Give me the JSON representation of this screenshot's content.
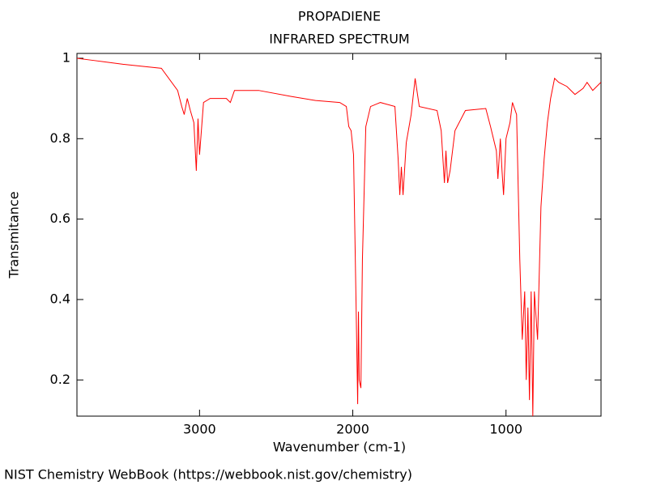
{
  "chart_data": {
    "type": "line",
    "title": "PROPADIENE",
    "subtitle": "INFRARED SPECTRUM",
    "x_label": "Wavenumber (cm-1)",
    "y_label": "Transmitance",
    "source": "NIST Chemistry WebBook (https://webbook.nist.gov/chemistry)",
    "color": "#ff0000",
    "xlim": [
      3800,
      380
    ],
    "ylim": [
      0.11,
      1.012
    ],
    "xticks": [
      3000,
      2000,
      1000
    ],
    "yticks": [
      0.2,
      0.4,
      0.6,
      0.8,
      1
    ],
    "x": [
      3800,
      3700,
      3500,
      3249,
      3143,
      3116,
      3100,
      3080,
      3060,
      3037,
      3021,
      3010,
      3000,
      2974,
      2931,
      2825,
      2799,
      2772,
      2614,
      2402,
      2243,
      2085,
      2042,
      2026,
      2011,
      1995,
      1979,
      1968,
      1963,
      1958,
      1947,
      1937,
      1915,
      1884,
      1820,
      1725,
      1704,
      1693,
      1683,
      1672,
      1651,
      1619,
      1593,
      1566,
      1450,
      1423,
      1402,
      1392,
      1381,
      1365,
      1333,
      1265,
      1132,
      1101,
      1063,
      1053,
      1037,
      1026,
      1016,
      1000,
      974,
      958,
      931,
      910,
      894,
      878,
      868,
      857,
      847,
      836,
      825,
      815,
      794,
      772,
      751,
      730,
      709,
      683,
      656,
      603,
      550,
      497,
      471,
      434,
      381
    ],
    "values": [
      1.0,
      0.995,
      0.985,
      0.975,
      0.92,
      0.88,
      0.86,
      0.9,
      0.87,
      0.84,
      0.72,
      0.85,
      0.76,
      0.89,
      0.9,
      0.9,
      0.89,
      0.92,
      0.92,
      0.905,
      0.895,
      0.89,
      0.88,
      0.83,
      0.82,
      0.76,
      0.4,
      0.14,
      0.37,
      0.2,
      0.18,
      0.5,
      0.83,
      0.88,
      0.89,
      0.88,
      0.75,
      0.66,
      0.73,
      0.66,
      0.79,
      0.86,
      0.95,
      0.88,
      0.87,
      0.82,
      0.69,
      0.77,
      0.69,
      0.72,
      0.82,
      0.87,
      0.875,
      0.83,
      0.77,
      0.7,
      0.8,
      0.72,
      0.66,
      0.8,
      0.84,
      0.89,
      0.86,
      0.5,
      0.3,
      0.42,
      0.2,
      0.38,
      0.15,
      0.42,
      0.11,
      0.42,
      0.3,
      0.63,
      0.75,
      0.84,
      0.9,
      0.95,
      0.94,
      0.93,
      0.91,
      0.925,
      0.94,
      0.92,
      0.94
    ]
  }
}
